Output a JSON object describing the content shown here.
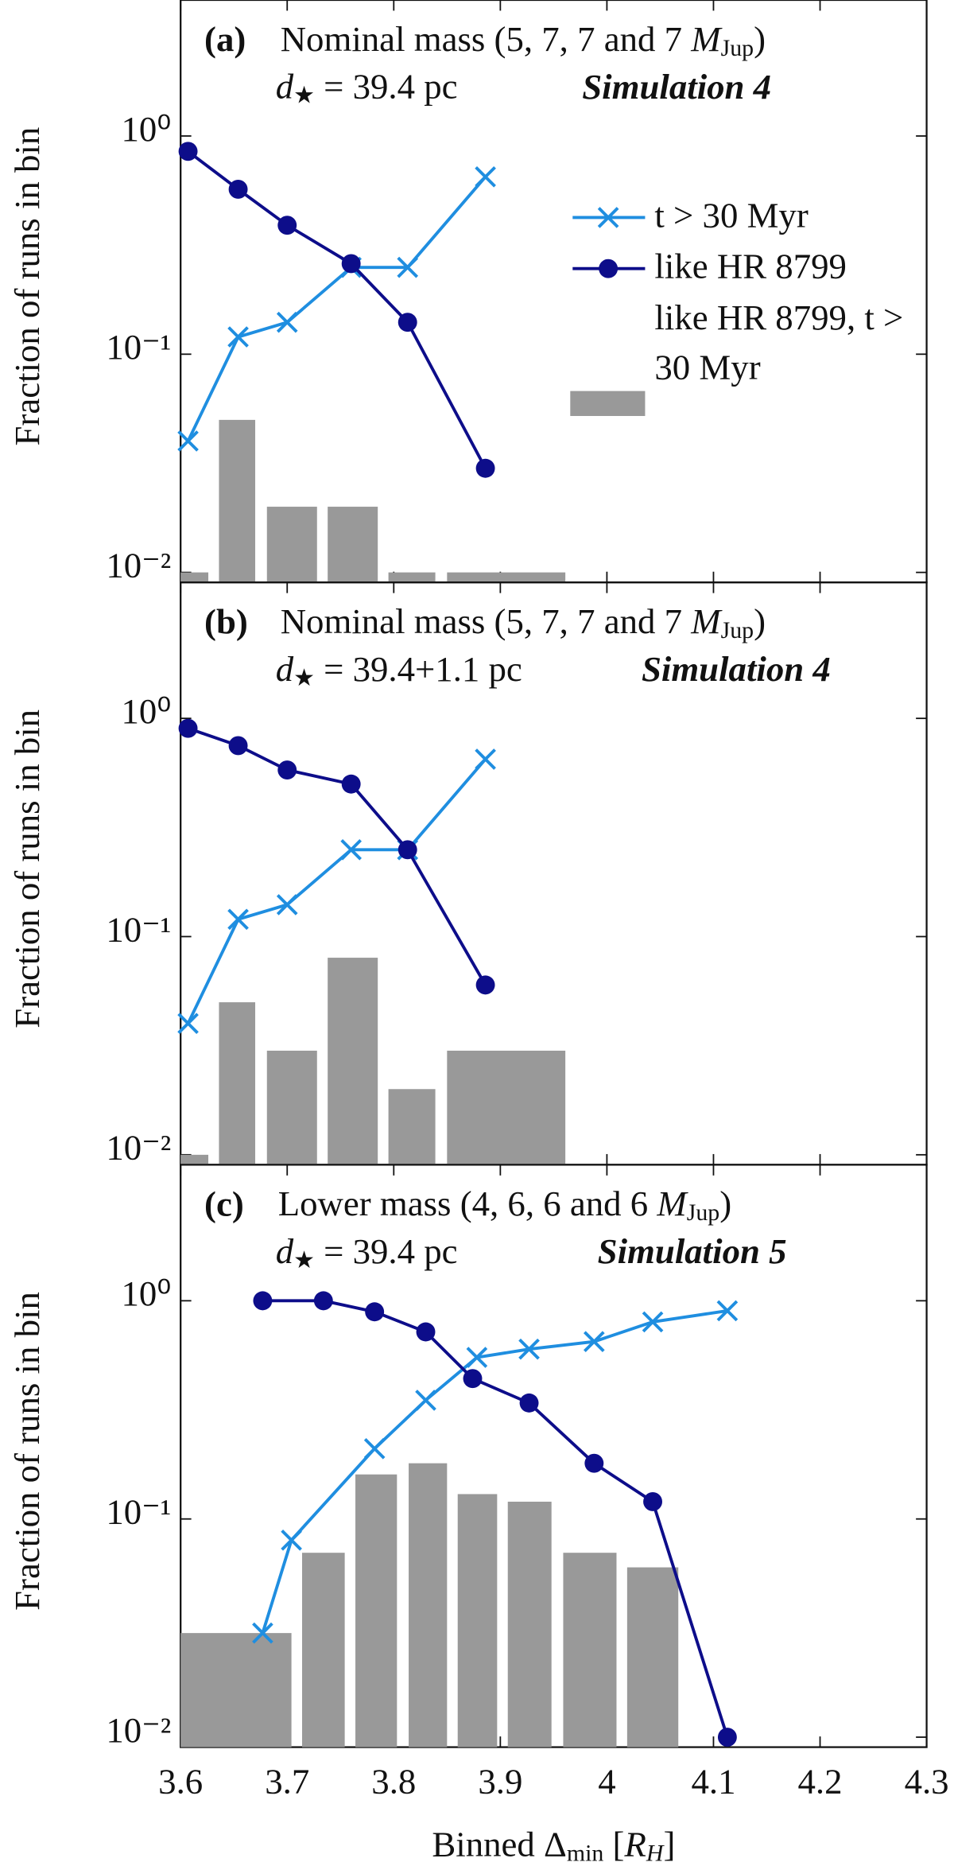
{
  "chart_data": [
    {
      "type": "combo",
      "label": "(a)",
      "title_parts": [
        "Nominal mass (5, 7, 7 and 7 ",
        "M",
        "Jup",
        ")"
      ],
      "subtitle_parts": [
        "d",
        "★",
        " = 39.4 pc"
      ],
      "simulation": "Simulation 4",
      "ylabel": "Fraction of runs in bin",
      "log_y": true,
      "ylim": [
        0.009,
        4.2
      ],
      "yticks": [
        {
          "value": 0.01,
          "label": "10⁻²"
        },
        {
          "value": 0.1,
          "label": "10⁻¹"
        },
        {
          "value": 1,
          "label": "10⁰"
        }
      ],
      "xlim": [
        3.6,
        4.3
      ],
      "legend": "upper right",
      "series": [
        {
          "type": "line",
          "name": "t > 30 Myr",
          "color": "#1f8ee0",
          "marker": "x",
          "x": [
            3.607,
            3.654,
            3.7,
            3.76,
            3.813,
            3.886
          ],
          "values": [
            0.04,
            0.12,
            0.14,
            0.25,
            0.25,
            0.65
          ]
        },
        {
          "type": "line",
          "name": "like HR 8799",
          "color": "#0d0d8a",
          "marker": "circle",
          "x": [
            3.607,
            3.654,
            3.7,
            3.76,
            3.813,
            3.886
          ],
          "values": [
            0.85,
            0.57,
            0.39,
            0.26,
            0.14,
            0.03
          ]
        },
        {
          "type": "bar",
          "name": "like HR 8799, t > 30 Myr",
          "color": "#999999",
          "x_left": [
            3.6,
            3.636,
            3.681,
            3.738,
            3.795,
            3.85
          ],
          "x_right": [
            3.626,
            3.67,
            3.728,
            3.785,
            3.839,
            3.961
          ],
          "values": [
            0.01,
            0.05,
            0.02,
            0.02,
            0.01,
            0.01
          ]
        }
      ]
    },
    {
      "type": "combo",
      "label": "(b)",
      "title_parts": [
        "Nominal mass (5, 7, 7 and 7 ",
        "M",
        "Jup",
        ")"
      ],
      "subtitle_parts": [
        "d",
        "★",
        " = 39.4+1.1 pc"
      ],
      "simulation": "Simulation 4",
      "ylabel": "Fraction of runs in bin",
      "log_y": true,
      "ylim": [
        0.009,
        4.2
      ],
      "yticks": [
        {
          "value": 0.01,
          "label": "10⁻²"
        },
        {
          "value": 0.1,
          "label": "10⁻¹"
        },
        {
          "value": 1,
          "label": "10⁰"
        }
      ],
      "xlim": [
        3.6,
        4.3
      ],
      "series": [
        {
          "type": "line",
          "color": "#1f8ee0",
          "marker": "x",
          "x": [
            3.607,
            3.654,
            3.7,
            3.76,
            3.813,
            3.886
          ],
          "values": [
            0.04,
            0.12,
            0.14,
            0.25,
            0.25,
            0.65
          ]
        },
        {
          "type": "line",
          "color": "#0d0d8a",
          "marker": "circle",
          "x": [
            3.607,
            3.654,
            3.7,
            3.76,
            3.813,
            3.886
          ],
          "values": [
            0.9,
            0.75,
            0.58,
            0.5,
            0.25,
            0.06
          ]
        },
        {
          "type": "bar",
          "color": "#999999",
          "x_left": [
            3.6,
            3.636,
            3.681,
            3.738,
            3.795,
            3.85
          ],
          "x_right": [
            3.626,
            3.67,
            3.728,
            3.785,
            3.839,
            3.961
          ],
          "values": [
            0.01,
            0.05,
            0.03,
            0.08,
            0.02,
            0.03
          ]
        }
      ]
    },
    {
      "type": "combo",
      "label": "(c)",
      "title_parts": [
        "Lower mass (4, 6, 6 and 6 ",
        "M",
        "Jup",
        ")"
      ],
      "subtitle_parts": [
        "d",
        "★",
        " = 39.4 pc"
      ],
      "simulation": "Simulation 5",
      "ylabel": "Fraction of runs in bin",
      "log_y": true,
      "ylim": [
        0.009,
        4.2
      ],
      "yticks": [
        {
          "value": 0.01,
          "label": "10⁻²"
        },
        {
          "value": 0.1,
          "label": "10⁻¹"
        },
        {
          "value": 1,
          "label": "10⁰"
        }
      ],
      "xlim": [
        3.6,
        4.3
      ],
      "xticks": [
        3.6,
        3.7,
        3.8,
        3.9,
        4,
        4.1,
        4.2,
        4.3
      ],
      "xlabel_parts": [
        "Binned Δ",
        "min",
        " [",
        "R",
        "H",
        "]"
      ],
      "series": [
        {
          "type": "line",
          "color": "#1f8ee0",
          "marker": "x",
          "x": [
            3.677,
            3.704,
            3.782,
            3.83,
            3.878,
            3.927,
            3.988,
            4.043,
            4.113
          ],
          "values": [
            0.03,
            0.08,
            0.21,
            0.35,
            0.55,
            0.6,
            0.65,
            0.8,
            0.9
          ]
        },
        {
          "type": "line",
          "color": "#0d0d8a",
          "marker": "circle",
          "x": [
            3.677,
            3.734,
            3.782,
            3.83,
            3.874,
            3.927,
            3.988,
            4.043,
            4.113
          ],
          "values": [
            1.0,
            1.0,
            0.89,
            0.72,
            0.44,
            0.34,
            0.18,
            0.12,
            0.01
          ]
        },
        {
          "type": "bar",
          "color": "#999999",
          "x_left": [
            3.6,
            3.714,
            3.764,
            3.814,
            3.86,
            3.907,
            3.959,
            4.019
          ],
          "x_right": [
            3.704,
            3.754,
            3.803,
            3.85,
            3.897,
            3.948,
            4.009,
            4.067
          ],
          "values": [
            0.03,
            0.07,
            0.16,
            0.18,
            0.13,
            0.12,
            0.07,
            0.06
          ]
        }
      ]
    }
  ]
}
